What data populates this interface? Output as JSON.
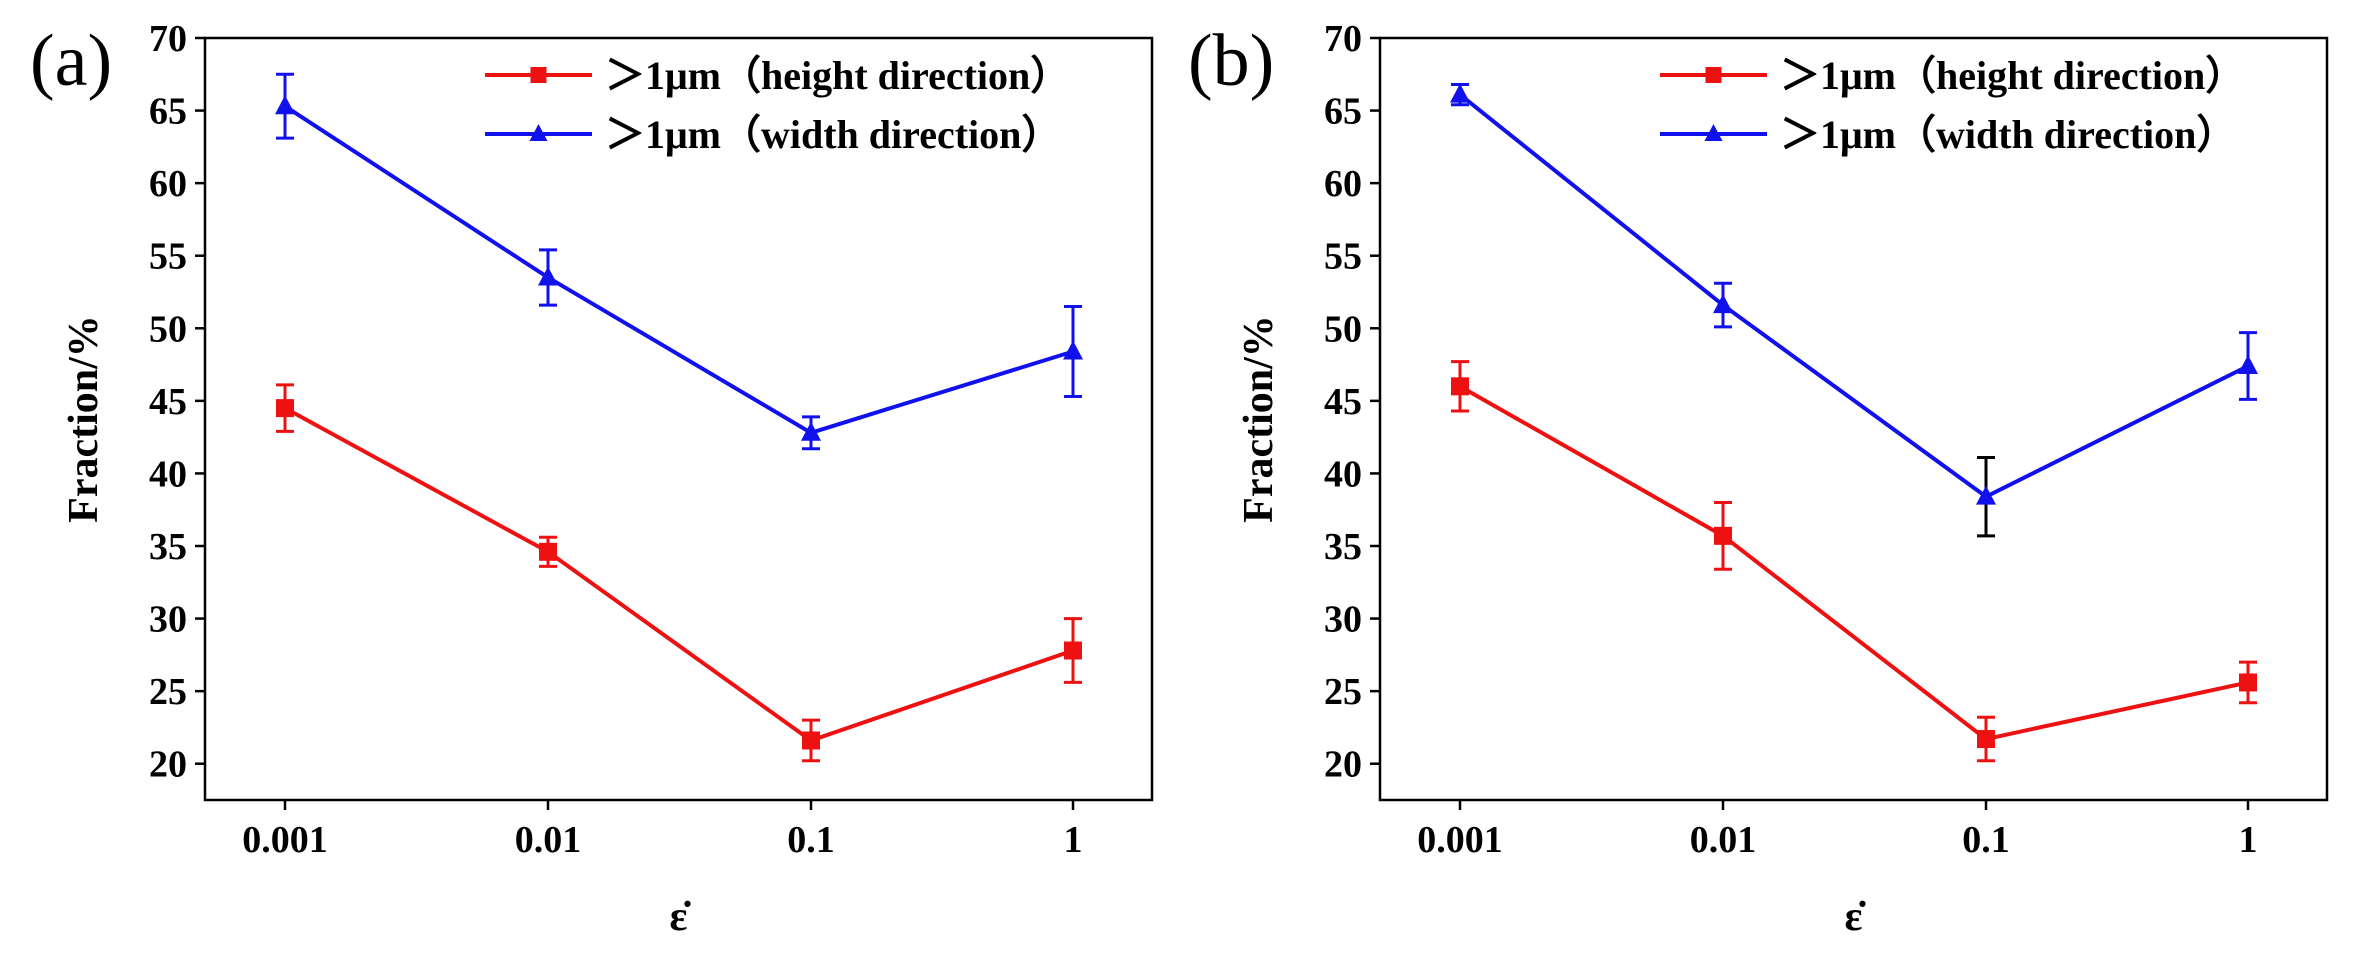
{
  "chart_data": [
    {
      "type": "line",
      "panel_label": "(a)",
      "categories": [
        "0.001",
        "0.01",
        "0.1",
        "1"
      ],
      "xlabel": "ε̇",
      "ylabel": "Fraction/%",
      "ylim": [
        17.5,
        70
      ],
      "yticks": [
        20,
        25,
        30,
        35,
        40,
        45,
        50,
        55,
        60,
        65,
        70
      ],
      "legend_position": "top-right",
      "series": [
        {
          "name": "＞1μm（height direction）",
          "color": "#ee1111",
          "marker": "square",
          "values": [
            44.5,
            34.6,
            21.6,
            27.8
          ],
          "errors": [
            1.6,
            1.0,
            1.4,
            2.2
          ]
        },
        {
          "name": "＞1μm（width direction）",
          "color": "#1111ee",
          "marker": "triangle",
          "values": [
            65.3,
            53.5,
            42.8,
            48.4
          ],
          "errors": [
            2.2,
            1.9,
            1.1,
            3.1
          ]
        }
      ]
    },
    {
      "type": "line",
      "panel_label": "(b)",
      "categories": [
        "0.001",
        "0.01",
        "0.1",
        "1"
      ],
      "xlabel": "ε̇",
      "ylabel": "Fraction/%",
      "ylim": [
        17.5,
        70
      ],
      "yticks": [
        20,
        25,
        30,
        35,
        40,
        45,
        50,
        55,
        60,
        65,
        70
      ],
      "legend_position": "top-right",
      "series": [
        {
          "name": "＞1μm（height direction）",
          "color": "#ee1111",
          "marker": "square",
          "values": [
            46.0,
            35.7,
            21.7,
            25.6
          ],
          "errors": [
            1.7,
            2.3,
            1.5,
            1.4
          ]
        },
        {
          "name": "＞1μm（width direction）",
          "color": "#1111ee",
          "marker": "triangle",
          "values": [
            66.1,
            51.6,
            38.4,
            47.4
          ],
          "errors": [
            0.7,
            1.5,
            2.7,
            2.3
          ],
          "error_colors": [
            "#1111ee",
            "#1111ee",
            "#000000",
            "#1111ee"
          ]
        }
      ]
    }
  ]
}
